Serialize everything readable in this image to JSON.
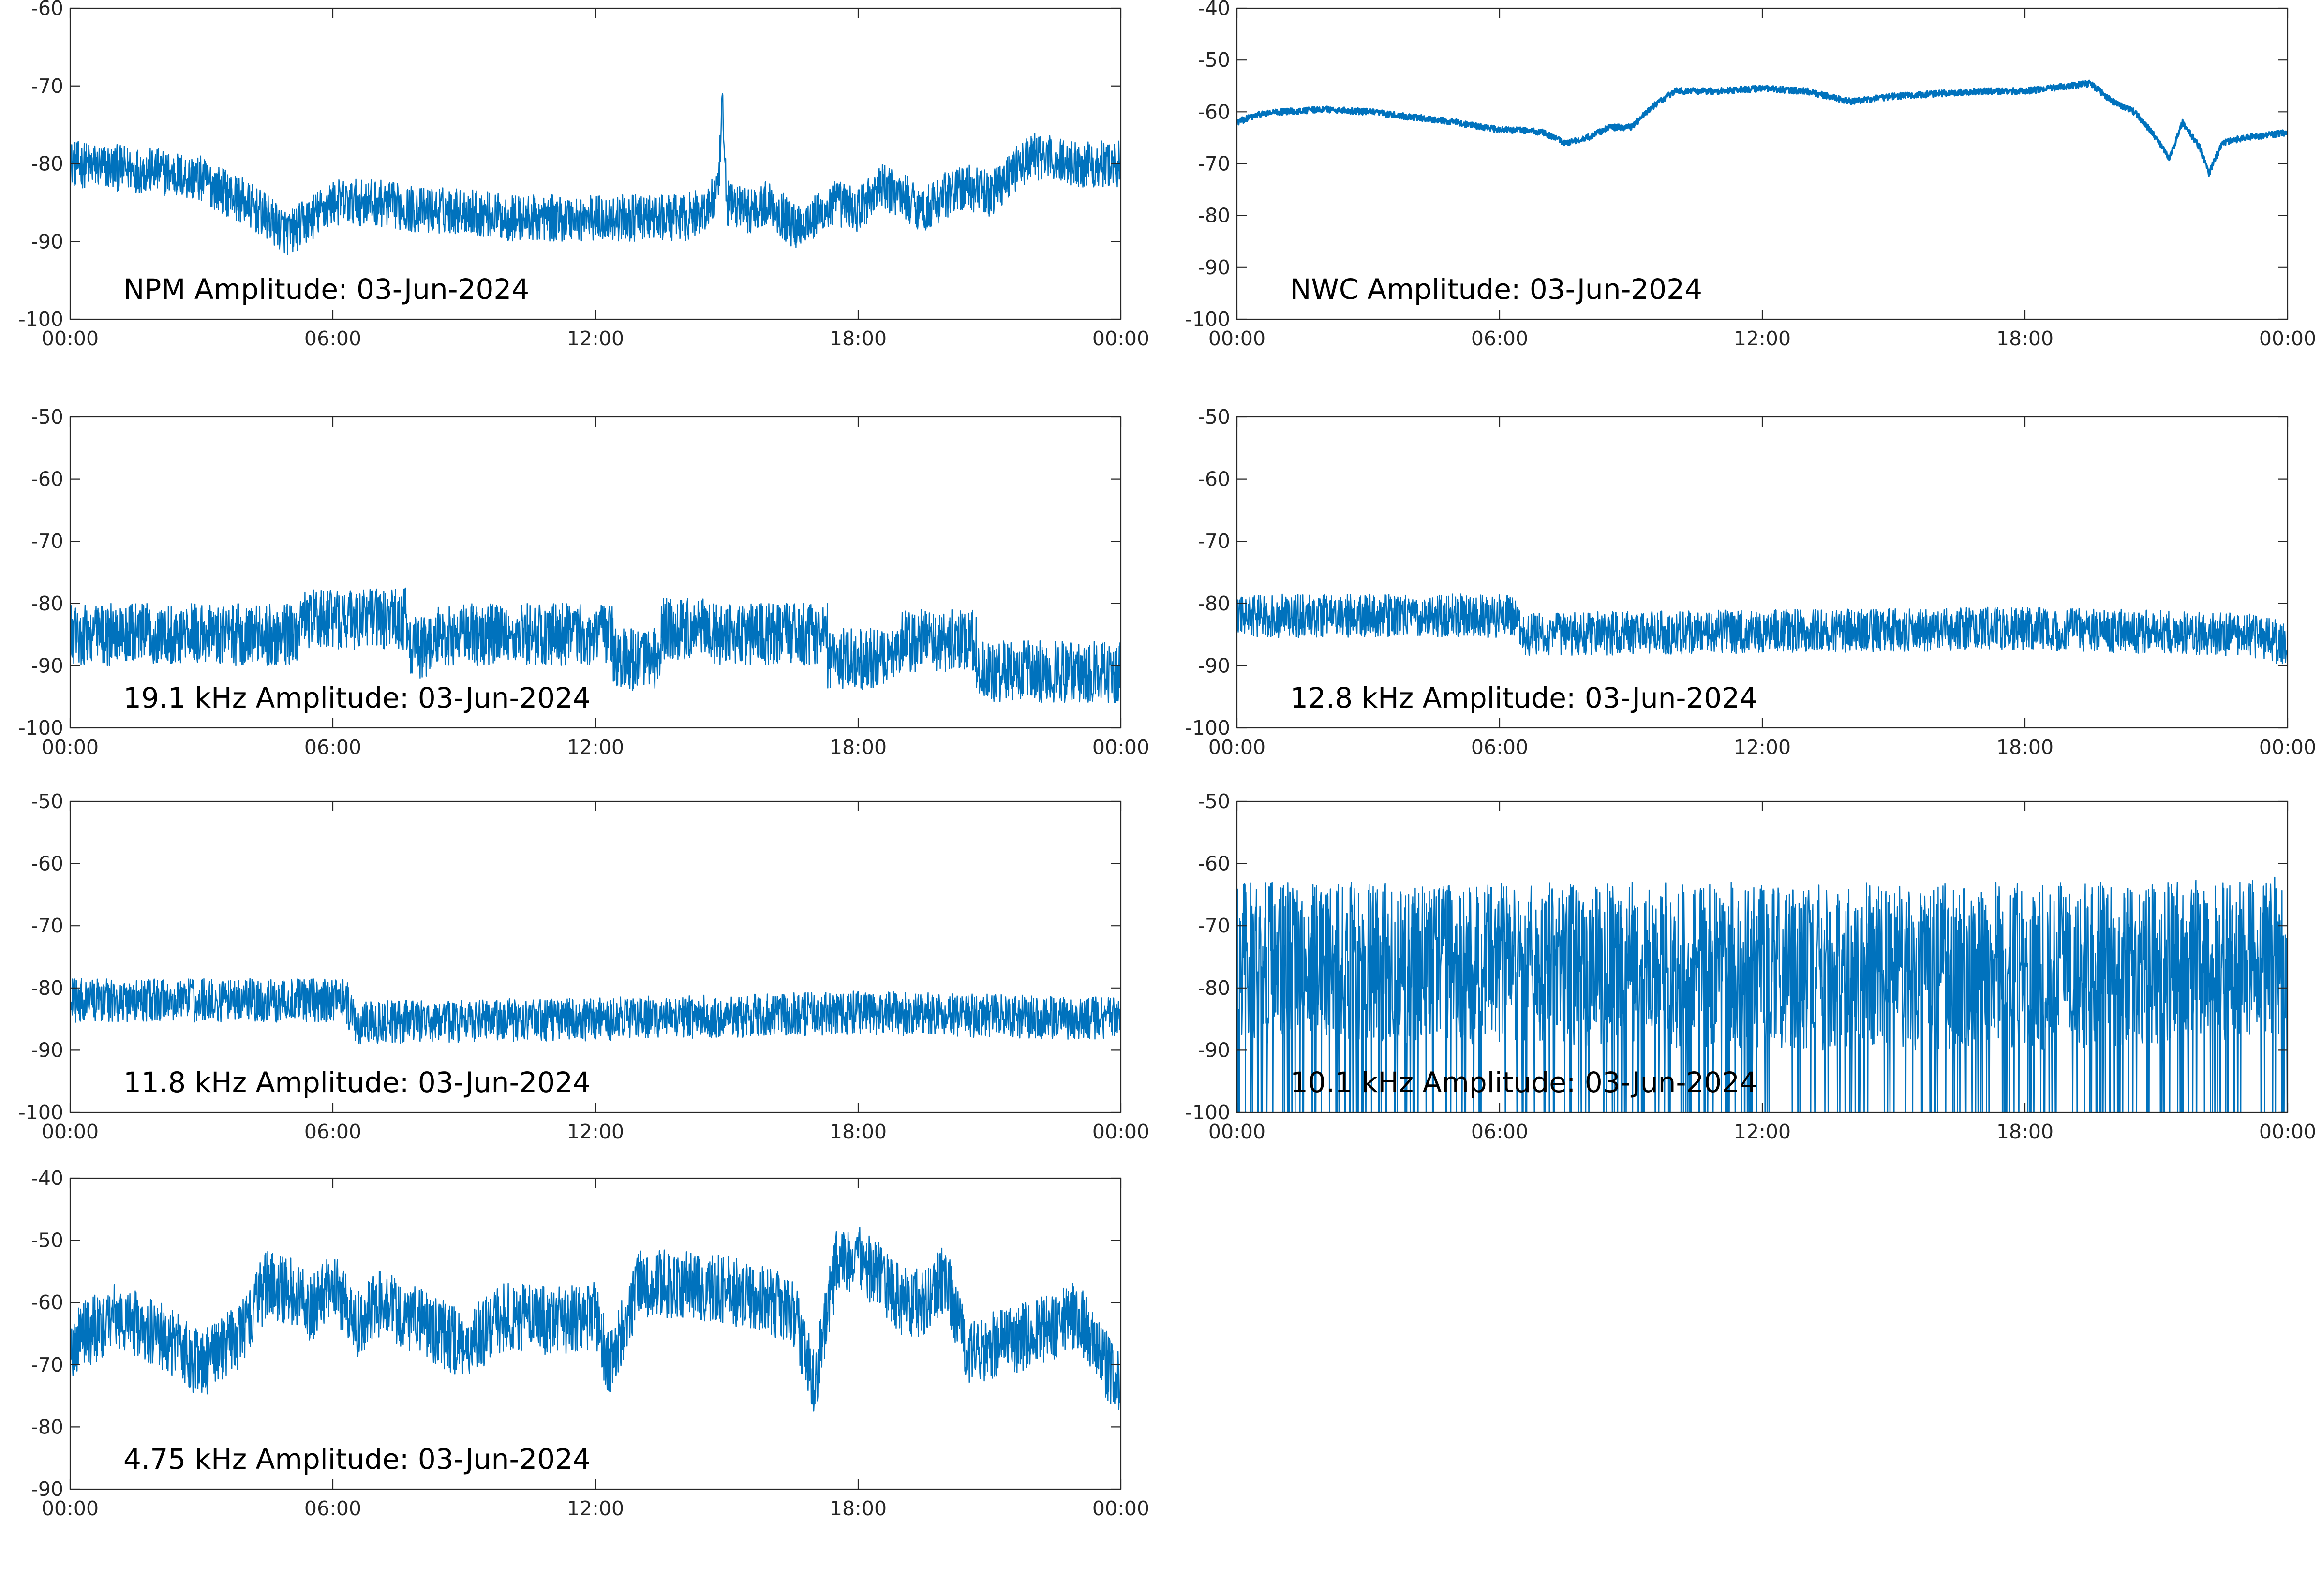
{
  "chart_data": [
    {
      "type": "line",
      "title": "NPM Amplitude: 03-Jun-2024",
      "xlim": [
        0,
        24
      ],
      "ylim": [
        -100,
        -60
      ],
      "xticks": [
        0,
        6,
        12,
        18,
        24
      ],
      "xtick_labels": [
        "00:00",
        "06:00",
        "12:00",
        "18:00",
        "00:00"
      ],
      "yticks": [
        -60,
        -70,
        -80,
        -90,
        -100
      ],
      "ytick_labels": [
        "-60",
        "-70",
        "-80",
        "-90",
        "-100"
      ],
      "color": "#0072bd",
      "noise": 3.0,
      "series": [
        {
          "x": [
            0,
            1,
            2,
            3,
            4,
            5,
            5.5,
            6,
            7,
            8,
            9,
            10,
            11,
            12,
            13,
            14,
            14.5,
            14.8,
            14.9,
            15,
            15.5,
            16,
            16.5,
            17,
            17.5,
            18,
            18.5,
            19,
            19.5,
            20,
            20.5,
            21,
            21.5,
            22,
            23,
            24
          ],
          "y": [
            -80,
            -80.5,
            -81,
            -82,
            -85,
            -89,
            -87,
            -85,
            -85,
            -86,
            -86,
            -87,
            -87,
            -87,
            -87,
            -87,
            -86,
            -84,
            -73,
            -85,
            -86,
            -85,
            -88,
            -87,
            -85,
            -86,
            -83,
            -84,
            -86,
            -84,
            -83,
            -84,
            -81,
            -79,
            -80,
            -80
          ]
        }
      ]
    },
    {
      "type": "line",
      "title": "NWC Amplitude: 03-Jun-2024",
      "xlim": [
        0,
        24
      ],
      "ylim": [
        -100,
        -40
      ],
      "xticks": [
        0,
        6,
        12,
        18,
        24
      ],
      "xtick_labels": [
        "00:00",
        "06:00",
        "12:00",
        "18:00",
        "00:00"
      ],
      "yticks": [
        -40,
        -50,
        -60,
        -70,
        -80,
        -90,
        -100
      ],
      "ytick_labels": [
        "-40",
        "-50",
        "-60",
        "-70",
        "-80",
        "-90",
        "-100"
      ],
      "color": "#0072bd",
      "noise": 0.6,
      "series": [
        {
          "x": [
            0,
            0.5,
            1,
            2,
            3,
            4,
            5,
            6,
            6.5,
            7,
            7.5,
            8,
            8.5,
            9,
            9.5,
            10,
            11,
            12,
            13,
            14,
            15,
            16,
            17,
            18,
            19,
            19.5,
            20,
            20.5,
            21,
            21.3,
            21.6,
            22,
            22.2,
            22.5,
            23,
            23.5,
            24
          ],
          "y": [
            -62,
            -60.5,
            -60,
            -59.5,
            -60,
            -61,
            -62,
            -63.5,
            -63.5,
            -64,
            -66,
            -65,
            -63,
            -63,
            -59,
            -56,
            -56,
            -55.5,
            -56,
            -58,
            -57,
            -56.5,
            -56,
            -56,
            -55,
            -54.5,
            -58,
            -60,
            -65,
            -69,
            -62,
            -67,
            -72,
            -66,
            -65,
            -64.5,
            -64
          ]
        }
      ]
    },
    {
      "type": "line",
      "title": "19.1 kHz Amplitude: 03-Jun-2024",
      "xlim": [
        0,
        24
      ],
      "ylim": [
        -100,
        -50
      ],
      "xticks": [
        0,
        6,
        12,
        18,
        24
      ],
      "xtick_labels": [
        "00:00",
        "06:00",
        "12:00",
        "18:00",
        "00:00"
      ],
      "yticks": [
        -50,
        -60,
        -70,
        -80,
        -90,
        -100
      ],
      "ytick_labels": [
        "-50",
        "-60",
        "-70",
        "-80",
        "-90",
        "-100"
      ],
      "color": "#0072bd",
      "noise": 5.0,
      "series": [
        {
          "x": [
            0,
            5.2,
            5.2,
            7.7,
            7.7,
            8.3,
            8.3,
            12.4,
            12.4,
            13.5,
            13.5,
            14.7,
            14.7,
            17.3,
            17.3,
            19.0,
            19.0,
            20.7,
            20.7,
            24
          ],
          "y": [
            -85,
            -85,
            -82.5,
            -82.5,
            -87,
            -87,
            -85,
            -85,
            -89,
            -89,
            -84,
            -84,
            -85,
            -85,
            -89,
            -89,
            -86,
            -86,
            -91,
            -91
          ]
        }
      ]
    },
    {
      "type": "line",
      "title": "12.8 kHz Amplitude: 03-Jun-2024",
      "xlim": [
        0,
        24
      ],
      "ylim": [
        -100,
        -50
      ],
      "xticks": [
        0,
        6,
        12,
        18,
        24
      ],
      "xtick_labels": [
        "00:00",
        "06:00",
        "12:00",
        "18:00",
        "00:00"
      ],
      "yticks": [
        -50,
        -60,
        -70,
        -80,
        -90,
        -100
      ],
      "ytick_labels": [
        "-50",
        "-60",
        "-70",
        "-80",
        "-90",
        "-100"
      ],
      "color": "#0072bd",
      "noise": 3.5,
      "series": [
        {
          "x": [
            0,
            6.3,
            6.5,
            12,
            18,
            23,
            24
          ],
          "y": [
            -82,
            -82,
            -85,
            -84.5,
            -84,
            -85,
            -86.5
          ]
        }
      ]
    },
    {
      "type": "line",
      "title": "11.8 kHz Amplitude: 03-Jun-2024",
      "xlim": [
        0,
        24
      ],
      "ylim": [
        -100,
        -50
      ],
      "xticks": [
        0,
        6,
        12,
        18,
        24
      ],
      "xtick_labels": [
        "00:00",
        "06:00",
        "12:00",
        "18:00",
        "00:00"
      ],
      "yticks": [
        -50,
        -60,
        -70,
        -80,
        -90,
        -100
      ],
      "ytick_labels": [
        "-50",
        "-60",
        "-70",
        "-80",
        "-90",
        "-100"
      ],
      "color": "#0072bd",
      "noise": 3.5,
      "series": [
        {
          "x": [
            0,
            6.3,
            6.5,
            12,
            18,
            24
          ],
          "y": [
            -82,
            -82,
            -85.5,
            -85,
            -84,
            -85
          ]
        }
      ]
    },
    {
      "type": "line",
      "title": "10.1 kHz Amplitude: 03-Jun-2024",
      "xlim": [
        0,
        24
      ],
      "ylim": [
        -100,
        -50
      ],
      "xticks": [
        0,
        6,
        12,
        18,
        24
      ],
      "xtick_labels": [
        "00:00",
        "06:00",
        "12:00",
        "18:00",
        "00:00"
      ],
      "yticks": [
        -50,
        -60,
        -70,
        -80,
        -90,
        -100
      ],
      "ytick_labels": [
        "-50",
        "-60",
        "-70",
        "-80",
        "-90",
        "-100"
      ],
      "color": "#0072bd",
      "noise": 13.0,
      "series": [
        {
          "x": [
            0,
            6,
            12,
            18,
            24
          ],
          "y": [
            -76,
            -76,
            -77,
            -77,
            -75
          ]
        }
      ]
    },
    {
      "type": "line",
      "title": "4.75 kHz Amplitude: 03-Jun-2024",
      "xlim": [
        0,
        24
      ],
      "ylim": [
        -90,
        -40
      ],
      "xticks": [
        0,
        6,
        12,
        18,
        24
      ],
      "xtick_labels": [
        "00:00",
        "06:00",
        "12:00",
        "18:00",
        "00:00"
      ],
      "yticks": [
        -40,
        -50,
        -60,
        -70,
        -80,
        -90
      ],
      "ytick_labels": [
        "-40",
        "-50",
        "-60",
        "-70",
        "-80",
        "-90"
      ],
      "color": "#0072bd",
      "noise": 5.5,
      "series": [
        {
          "x": [
            0,
            1,
            2,
            3,
            3.8,
            4.5,
            5,
            5.5,
            6,
            6.5,
            7,
            8,
            9,
            10,
            11,
            12,
            12.3,
            13,
            14,
            15,
            16,
            16.5,
            17,
            17.5,
            18,
            18.5,
            19,
            19.5,
            20,
            20.5,
            21,
            22,
            23,
            24
          ],
          "y": [
            -67,
            -62,
            -65,
            -70,
            -66,
            -57,
            -58,
            -61,
            -56,
            -64,
            -60,
            -63,
            -67,
            -62,
            -63,
            -62,
            -70,
            -57,
            -57,
            -58,
            -60,
            -61,
            -73,
            -54,
            -53,
            -56,
            -60,
            -60,
            -56,
            -68,
            -67,
            -65,
            -62,
            -74
          ]
        }
      ]
    }
  ]
}
